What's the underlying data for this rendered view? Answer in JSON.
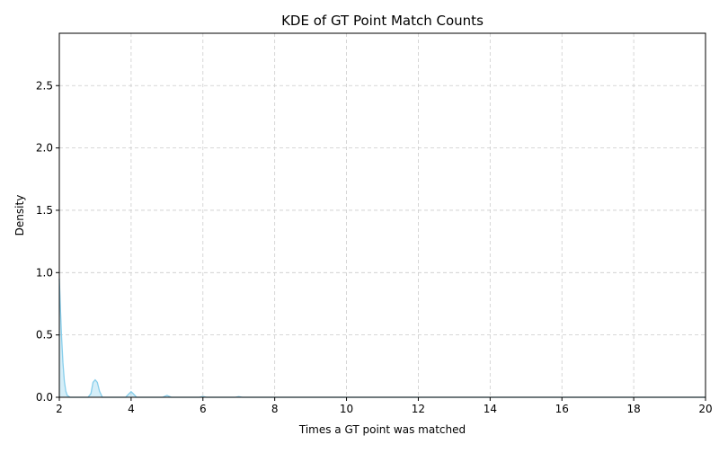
{
  "chart_data": {
    "type": "area",
    "title": "KDE of GT Point Match Counts",
    "xlabel": "Times a GT point was matched",
    "ylabel": "Density",
    "xlim": [
      2,
      20
    ],
    "ylim": [
      0,
      2.92
    ],
    "xticks": [
      "2",
      "4",
      "6",
      "8",
      "10",
      "12",
      "14",
      "16",
      "18",
      "20"
    ],
    "yticks": [
      "0.0",
      "0.5",
      "1.0",
      "1.5",
      "2.0",
      "2.5"
    ],
    "grid": true,
    "grid_style": "dashed",
    "series": [
      {
        "color": "#87CEEB",
        "points": [
          [
            2.0,
            0.95
          ],
          [
            2.03,
            0.72
          ],
          [
            2.06,
            0.5
          ],
          [
            2.1,
            0.28
          ],
          [
            2.14,
            0.13
          ],
          [
            2.18,
            0.05
          ],
          [
            2.22,
            0.015
          ],
          [
            2.3,
            0.0
          ],
          [
            2.8,
            0.0
          ],
          [
            2.88,
            0.03
          ],
          [
            2.94,
            0.12
          ],
          [
            3.0,
            0.14
          ],
          [
            3.06,
            0.12
          ],
          [
            3.12,
            0.05
          ],
          [
            3.2,
            0.0
          ],
          [
            3.85,
            0.0
          ],
          [
            3.93,
            0.025
          ],
          [
            4.0,
            0.045
          ],
          [
            4.07,
            0.025
          ],
          [
            4.15,
            0.0
          ],
          [
            4.88,
            0.0
          ],
          [
            5.0,
            0.015
          ],
          [
            5.12,
            0.0
          ],
          [
            5.9,
            0.0
          ],
          [
            6.0,
            0.006
          ],
          [
            6.1,
            0.0
          ],
          [
            6.9,
            0.0
          ],
          [
            7.0,
            0.005
          ],
          [
            7.1,
            0.0
          ],
          [
            20.0,
            0.0
          ]
        ]
      }
    ]
  }
}
